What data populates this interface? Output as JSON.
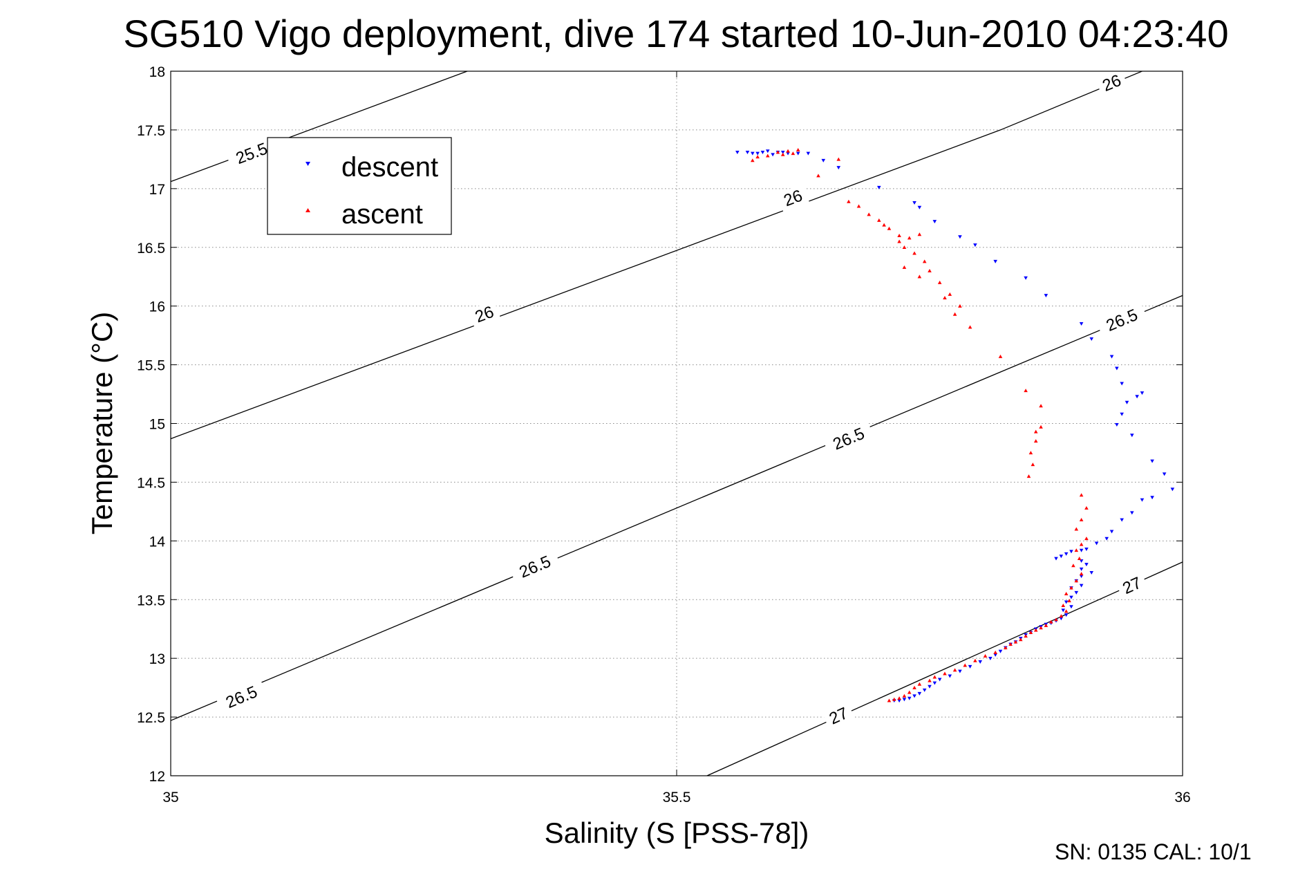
{
  "chart_data": {
    "type": "scatter",
    "title": "SG510 Vigo deployment, dive 174 started 10-Jun-2010 04:23:40",
    "xlabel": "Salinity (S [PSS-78])",
    "ylabel": "Temperature (°C)",
    "xlim": [
      35,
      36
    ],
    "ylim": [
      12,
      18
    ],
    "xticks": [
      35,
      35.5,
      36
    ],
    "xtick_labels": [
      "35",
      "35.5",
      "36"
    ],
    "yticks": [
      12,
      12.5,
      13,
      13.5,
      14,
      14.5,
      15,
      15.5,
      16,
      16.5,
      17,
      17.5,
      18
    ],
    "ytick_labels": [
      "12",
      "12.5",
      "13",
      "13.5",
      "14",
      "14.5",
      "15",
      "15.5",
      "16",
      "16.5",
      "17",
      "17.5",
      "18"
    ],
    "grid": true,
    "legend": {
      "position": "top-left",
      "entries": [
        "descent",
        "ascent"
      ]
    },
    "footer": "SN: 0135  CAL: 10/1",
    "colors": {
      "descent": "#0000ff",
      "ascent": "#ff0000",
      "contour": "#000000",
      "grid": "#888888"
    },
    "density_contours": [
      {
        "label": "25.5",
        "x": [
          35.0,
          35.293
        ],
        "y": [
          17.06,
          18.0
        ],
        "label_positions": [
          [
            35.08,
            17.3
          ]
        ]
      },
      {
        "label": "26",
        "x": [
          35.0,
          35.82
        ],
        "y": [
          14.87,
          17.5
        ],
        "label_positions": [
          [
            35.31,
            15.93
          ],
          [
            35.615,
            16.92
          ]
        ]
      },
      {
        "label": "26",
        "x": [
          35.82,
          35.96
        ],
        "y": [
          17.5,
          18.0
        ],
        "label_positions": [
          [
            35.93,
            17.9
          ]
        ]
      },
      {
        "label": "26.5",
        "x": [
          35.0,
          36.0
        ],
        "y": [
          12.47,
          16.09
        ],
        "label_positions": [
          [
            35.07,
            12.67
          ],
          [
            35.36,
            13.78
          ],
          [
            35.67,
            14.87
          ],
          [
            35.94,
            15.88
          ]
        ]
      },
      {
        "label": "27",
        "x": [
          35.53,
          36.0
        ],
        "y": [
          12.0,
          13.82
        ],
        "label_positions": [
          [
            35.66,
            12.51
          ],
          [
            35.95,
            13.62
          ]
        ]
      }
    ],
    "series": [
      {
        "name": "descent",
        "marker": "triangle-down",
        "color": "#0000ff",
        "points": [
          [
            35.56,
            17.31
          ],
          [
            35.57,
            17.31
          ],
          [
            35.575,
            17.3
          ],
          [
            35.58,
            17.3
          ],
          [
            35.585,
            17.31
          ],
          [
            35.59,
            17.32
          ],
          [
            35.595,
            17.29
          ],
          [
            35.6,
            17.31
          ],
          [
            35.605,
            17.31
          ],
          [
            35.61,
            17.3
          ],
          [
            35.62,
            17.3
          ],
          [
            35.63,
            17.3
          ],
          [
            35.645,
            17.24
          ],
          [
            35.66,
            17.18
          ],
          [
            35.7,
            17.01
          ],
          [
            35.735,
            16.88
          ],
          [
            35.74,
            16.84
          ],
          [
            35.755,
            16.72
          ],
          [
            35.78,
            16.59
          ],
          [
            35.795,
            16.52
          ],
          [
            35.815,
            16.38
          ],
          [
            35.845,
            16.24
          ],
          [
            35.865,
            16.09
          ],
          [
            35.9,
            15.85
          ],
          [
            35.91,
            15.72
          ],
          [
            35.93,
            15.57
          ],
          [
            35.935,
            15.47
          ],
          [
            35.94,
            15.34
          ],
          [
            35.945,
            15.18
          ],
          [
            35.94,
            15.08
          ],
          [
            35.955,
            15.23
          ],
          [
            35.96,
            15.26
          ],
          [
            35.935,
            14.99
          ],
          [
            35.95,
            14.9
          ],
          [
            35.97,
            14.68
          ],
          [
            35.982,
            14.57
          ],
          [
            35.99,
            14.44
          ],
          [
            35.97,
            14.37
          ],
          [
            35.96,
            14.35
          ],
          [
            35.95,
            14.24
          ],
          [
            35.94,
            14.18
          ],
          [
            35.93,
            14.08
          ],
          [
            35.925,
            14.02
          ],
          [
            35.915,
            13.98
          ],
          [
            35.905,
            13.93
          ],
          [
            35.9,
            13.92
          ],
          [
            35.89,
            13.91
          ],
          [
            35.885,
            13.89
          ],
          [
            35.88,
            13.87
          ],
          [
            35.875,
            13.85
          ],
          [
            35.9,
            13.83
          ],
          [
            35.905,
            13.8
          ],
          [
            35.9,
            13.76
          ],
          [
            35.91,
            13.73
          ],
          [
            35.9,
            13.7
          ],
          [
            35.895,
            13.66
          ],
          [
            35.9,
            13.62
          ],
          [
            35.89,
            13.6
          ],
          [
            35.895,
            13.56
          ],
          [
            35.89,
            13.52
          ],
          [
            35.885,
            13.48
          ],
          [
            35.89,
            13.44
          ],
          [
            35.882,
            13.41
          ],
          [
            35.885,
            13.37
          ],
          [
            35.88,
            13.34
          ],
          [
            35.875,
            13.32
          ],
          [
            35.87,
            13.3
          ],
          [
            35.865,
            13.29
          ],
          [
            35.86,
            13.27
          ],
          [
            35.855,
            13.25
          ],
          [
            35.85,
            13.22
          ],
          [
            35.845,
            13.2
          ],
          [
            35.84,
            13.17
          ],
          [
            35.835,
            13.14
          ],
          [
            35.83,
            13.12
          ],
          [
            35.825,
            13.09
          ],
          [
            35.82,
            13.06
          ],
          [
            35.815,
            13.03
          ],
          [
            35.81,
            13.0
          ],
          [
            35.8,
            12.97
          ],
          [
            35.79,
            12.93
          ],
          [
            35.78,
            12.89
          ],
          [
            35.77,
            12.85
          ],
          [
            35.76,
            12.82
          ],
          [
            35.755,
            12.79
          ],
          [
            35.75,
            12.76
          ],
          [
            35.745,
            12.73
          ],
          [
            35.74,
            12.7
          ],
          [
            35.735,
            12.68
          ],
          [
            35.73,
            12.66
          ],
          [
            35.725,
            12.65
          ],
          [
            35.72,
            12.64
          ],
          [
            35.715,
            12.64
          ]
        ]
      },
      {
        "name": "ascent",
        "marker": "triangle-up",
        "color": "#ff0000",
        "points": [
          [
            35.575,
            17.24
          ],
          [
            35.58,
            17.27
          ],
          [
            35.59,
            17.28
          ],
          [
            35.6,
            17.31
          ],
          [
            35.61,
            17.32
          ],
          [
            35.62,
            17.33
          ],
          [
            35.605,
            17.29
          ],
          [
            35.615,
            17.3
          ],
          [
            35.64,
            17.11
          ],
          [
            35.66,
            17.25
          ],
          [
            35.67,
            16.89
          ],
          [
            35.68,
            16.85
          ],
          [
            35.69,
            16.78
          ],
          [
            35.7,
            16.73
          ],
          [
            35.705,
            16.69
          ],
          [
            35.71,
            16.66
          ],
          [
            35.72,
            16.6
          ],
          [
            35.72,
            16.55
          ],
          [
            35.725,
            16.5
          ],
          [
            35.73,
            16.58
          ],
          [
            35.735,
            16.45
          ],
          [
            35.74,
            16.61
          ],
          [
            35.745,
            16.38
          ],
          [
            35.725,
            16.33
          ],
          [
            35.74,
            16.25
          ],
          [
            35.75,
            16.3
          ],
          [
            35.76,
            16.2
          ],
          [
            35.77,
            16.1
          ],
          [
            35.765,
            16.07
          ],
          [
            35.78,
            16.0
          ],
          [
            35.775,
            15.93
          ],
          [
            35.79,
            15.82
          ],
          [
            35.82,
            15.57
          ],
          [
            35.845,
            15.28
          ],
          [
            35.86,
            15.15
          ],
          [
            35.855,
            14.93
          ],
          [
            35.86,
            14.97
          ],
          [
            35.855,
            14.85
          ],
          [
            35.85,
            14.75
          ],
          [
            35.852,
            14.65
          ],
          [
            35.848,
            14.55
          ],
          [
            35.9,
            14.39
          ],
          [
            35.905,
            14.28
          ],
          [
            35.9,
            14.18
          ],
          [
            35.895,
            14.1
          ],
          [
            35.905,
            14.02
          ],
          [
            35.9,
            13.97
          ],
          [
            35.895,
            13.92
          ],
          [
            35.898,
            13.85
          ],
          [
            35.892,
            13.79
          ],
          [
            35.9,
            13.72
          ],
          [
            35.895,
            13.66
          ],
          [
            35.89,
            13.6
          ],
          [
            35.885,
            13.55
          ],
          [
            35.888,
            13.49
          ],
          [
            35.882,
            13.45
          ],
          [
            35.885,
            13.4
          ],
          [
            35.88,
            13.36
          ],
          [
            35.875,
            13.33
          ],
          [
            35.87,
            13.31
          ],
          [
            35.865,
            13.28
          ],
          [
            35.86,
            13.26
          ],
          [
            35.855,
            13.24
          ],
          [
            35.85,
            13.22
          ],
          [
            35.845,
            13.19
          ],
          [
            35.84,
            13.16
          ],
          [
            35.835,
            13.14
          ],
          [
            35.83,
            13.12
          ],
          [
            35.825,
            13.09
          ],
          [
            35.815,
            13.05
          ],
          [
            35.805,
            13.02
          ],
          [
            35.795,
            12.98
          ],
          [
            35.785,
            12.94
          ],
          [
            35.775,
            12.9
          ],
          [
            35.765,
            12.87
          ],
          [
            35.755,
            12.84
          ],
          [
            35.75,
            12.81
          ],
          [
            35.74,
            12.78
          ],
          [
            35.735,
            12.75
          ],
          [
            35.73,
            12.71
          ],
          [
            35.725,
            12.68
          ],
          [
            35.72,
            12.66
          ],
          [
            35.715,
            12.65
          ],
          [
            35.71,
            12.64
          ]
        ]
      }
    ]
  }
}
